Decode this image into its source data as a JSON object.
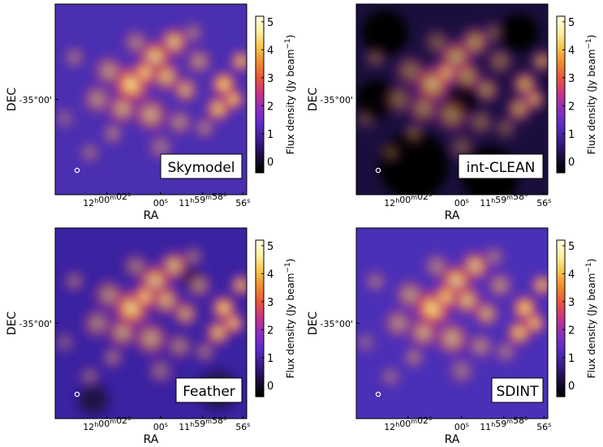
{
  "figure": {
    "axis": {
      "xlabel": "RA",
      "ylabel": "DEC",
      "ytick": "-35°00'",
      "xticks": [
        {
          "h": "12",
          "hu": "h",
          "m": "00",
          "mu": "m",
          "s": "02",
          "su": "s"
        },
        {
          "h": "",
          "hu": "",
          "m": "",
          "mu": "",
          "s": "00",
          "su": "s"
        },
        {
          "h": "11",
          "hu": "h",
          "m": "59",
          "mu": "m",
          "s": "58",
          "su": "s"
        },
        {
          "h": "",
          "hu": "",
          "m": "",
          "mu": "",
          "s": "56",
          "su": "s"
        }
      ]
    },
    "colorbar": {
      "label": "Flux density (Jy beam",
      "label_sup": "−1",
      "label_close": ")",
      "ticks": [
        "5",
        "4",
        "3",
        "2",
        "1",
        "0"
      ],
      "range": [
        -0.4,
        5.2
      ],
      "colormap": [
        "#000000",
        "#1a0c3d",
        "#3a1b8a",
        "#5a2cc4",
        "#8a2fc0",
        "#c4358a",
        "#e8523e",
        "#f08a2c",
        "#f8c44a",
        "#fff0a0",
        "#ffffe6"
      ]
    },
    "panels": [
      {
        "id": "skymodel",
        "title": "Skymodel"
      },
      {
        "id": "intclean",
        "title": "int-CLEAN"
      },
      {
        "id": "feather",
        "title": "Feather"
      },
      {
        "id": "sdint",
        "title": "SDINT"
      }
    ]
  }
}
